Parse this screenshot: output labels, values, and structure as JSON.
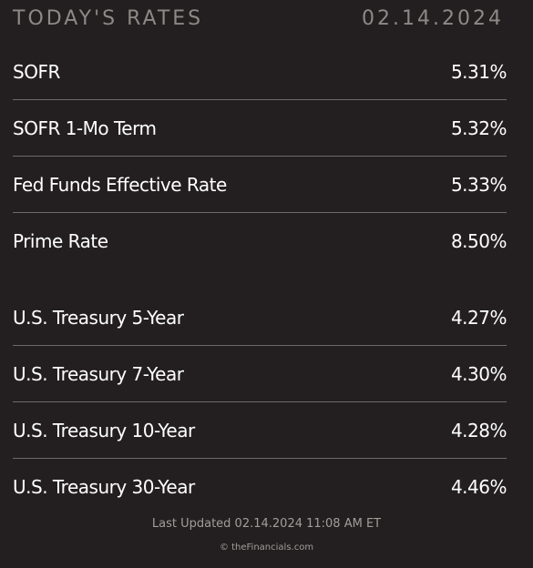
{
  "header": {
    "title": "TODAY'S RATES",
    "date": "02.14.2024"
  },
  "groups": [
    {
      "rows": [
        [
          "SOFR",
          "5.31%"
        ],
        [
          "SOFR 1-Mo Term",
          "5.32%"
        ],
        [
          "Fed Funds Effective Rate",
          "5.33%"
        ],
        [
          "Prime Rate",
          "8.50%"
        ]
      ]
    },
    {
      "rows": [
        [
          "U.S. Treasury 5-Year",
          "4.27%"
        ],
        [
          "U.S. Treasury 7-Year",
          "4.30%"
        ],
        [
          "U.S. Treasury 10-Year",
          "4.28%"
        ],
        [
          "U.S. Treasury 30-Year",
          "4.46%"
        ]
      ]
    }
  ],
  "footer": {
    "updated": "Last Updated 02.14.2024 11:08 AM ET",
    "copyright": "© theFinancials.com"
  }
}
